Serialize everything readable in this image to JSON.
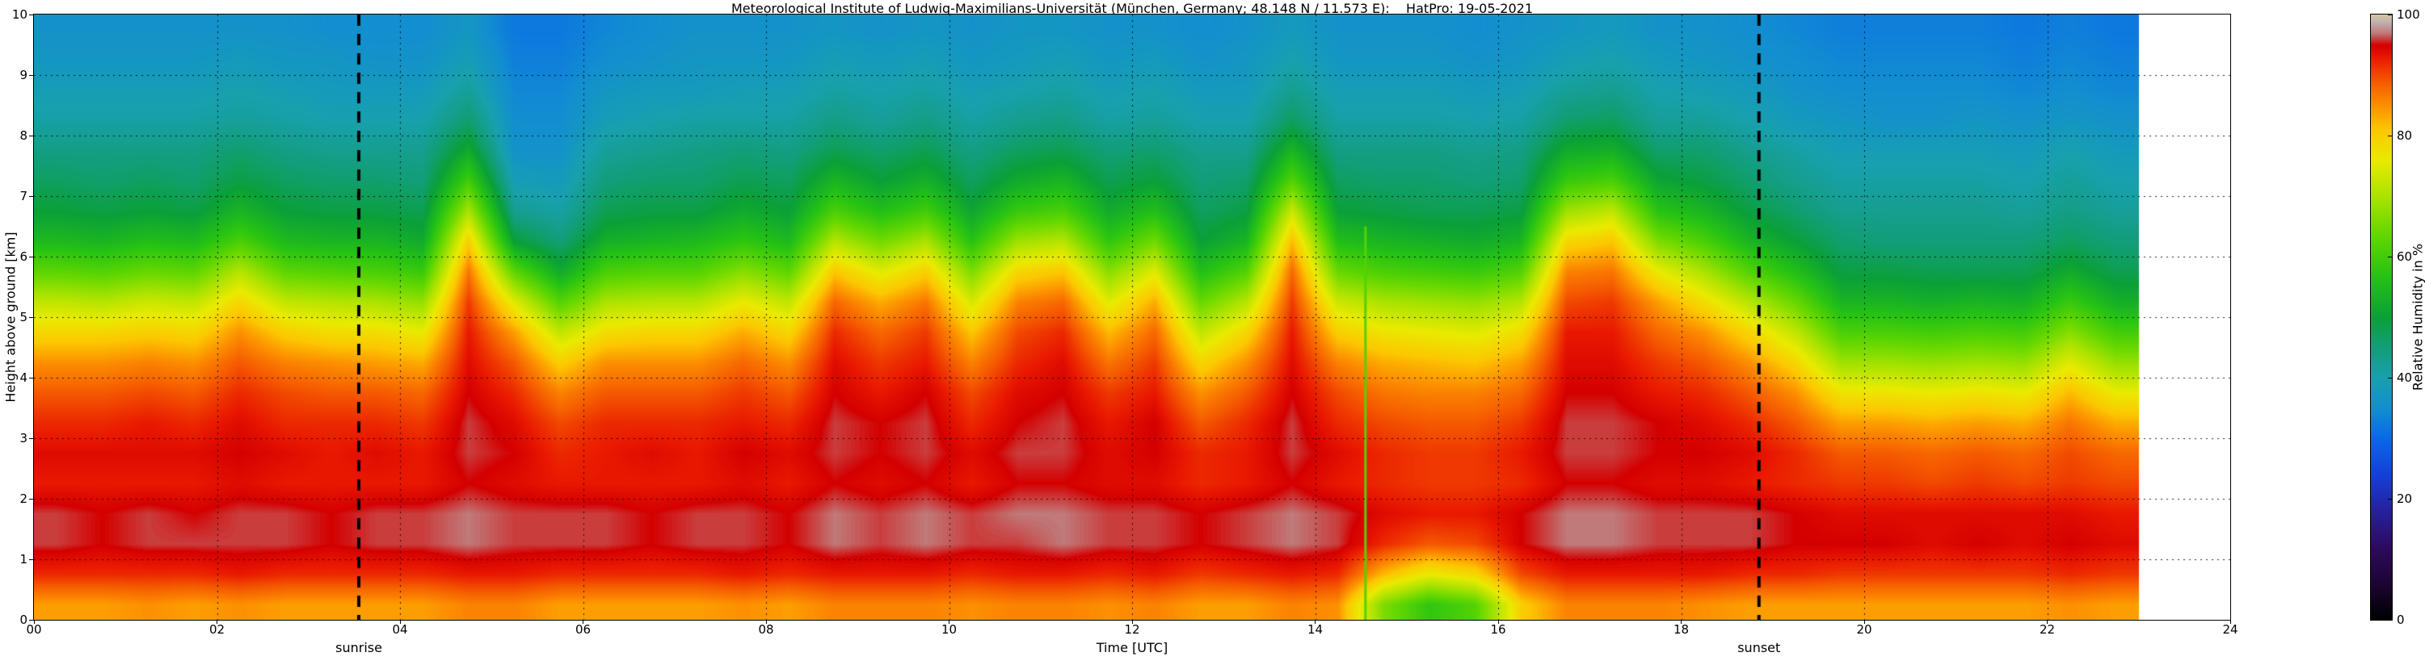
{
  "chart_data": {
    "type": "heatmap",
    "title": "Meteorological Institute of Ludwig-Maximilians-Universität (München, Germany; 48.148 N / 11.573 E):    HatPro: 19-05-2021",
    "xlabel": "Time [UTC]",
    "ylabel": "Height above ground [km]",
    "colorbar_label": "Relative Humidity in %",
    "xlim": [
      0,
      24
    ],
    "ylim": [
      0,
      10
    ],
    "data_end_hour": 23,
    "grid": true,
    "x_ticks": [
      "00",
      "02",
      "04",
      "06",
      "08",
      "10",
      "12",
      "14",
      "16",
      "18",
      "20",
      "22",
      "24"
    ],
    "x_tick_values": [
      0,
      2,
      4,
      6,
      8,
      10,
      12,
      14,
      16,
      18,
      20,
      22,
      24
    ],
    "y_ticks": [
      "0",
      "1",
      "2",
      "3",
      "4",
      "5",
      "6",
      "7",
      "8",
      "9",
      "10"
    ],
    "y_tick_values": [
      0,
      1,
      2,
      3,
      4,
      5,
      6,
      7,
      8,
      9,
      10
    ],
    "colorbar_ticks": [
      "0",
      "20",
      "40",
      "60",
      "80",
      "100"
    ],
    "colorbar_tick_values": [
      0,
      20,
      40,
      60,
      80,
      100
    ],
    "sunrise": {
      "label": "sunrise",
      "hour": 3.55
    },
    "sunset": {
      "label": "sunset",
      "hour": 18.85
    },
    "green_streak": {
      "hour": 14.55,
      "top_km": 6.5,
      "value": 62
    },
    "colormap_stops": [
      [
        0,
        "#000000"
      ],
      [
        6,
        "#1c0533"
      ],
      [
        12,
        "#2d0a5e"
      ],
      [
        18,
        "#26209e"
      ],
      [
        24,
        "#1440d8"
      ],
      [
        30,
        "#0a68e8"
      ],
      [
        35,
        "#128fd0"
      ],
      [
        40,
        "#18a0ae"
      ],
      [
        45,
        "#129e7a"
      ],
      [
        50,
        "#0aa038"
      ],
      [
        57,
        "#27c313"
      ],
      [
        64,
        "#66d800"
      ],
      [
        70,
        "#abe300"
      ],
      [
        76,
        "#eaea00"
      ],
      [
        81,
        "#fcc800"
      ],
      [
        85,
        "#fc9000"
      ],
      [
        89,
        "#f55a00"
      ],
      [
        93,
        "#e81800"
      ],
      [
        95,
        "#d40000"
      ],
      [
        97,
        "#c07a7a"
      ],
      [
        99,
        "#c2b6b6"
      ],
      [
        100,
        "#d8c498"
      ]
    ],
    "x_hours": [
      0,
      0.5,
      1,
      1.5,
      2,
      2.5,
      3,
      3.5,
      4,
      4.5,
      5,
      5.5,
      6,
      6.5,
      7,
      7.5,
      8,
      8.5,
      9,
      9.5,
      10,
      10.5,
      11,
      11.5,
      12,
      12.5,
      13,
      13.5,
      14,
      14.5,
      15,
      15.5,
      16,
      16.5,
      17,
      17.5,
      18,
      18.5,
      19,
      19.5,
      20,
      20.5,
      21,
      21.5,
      22,
      22.5
    ],
    "y_km": [
      0.25,
      0.75,
      1.25,
      1.75,
      2.25,
      2.75,
      3.25,
      3.75,
      4.25,
      4.75,
      5.25,
      5.75,
      6.25,
      6.75,
      7.25,
      7.75,
      8.25,
      8.75,
      9.25,
      9.75
    ],
    "values": [
      [
        84,
        92,
        96,
        96,
        93,
        94,
        92,
        89,
        85,
        79,
        72,
        63,
        55,
        50,
        47,
        44,
        41,
        39,
        37,
        36
      ],
      [
        84,
        92,
        95,
        95,
        93,
        94,
        92,
        89,
        85,
        79,
        71,
        62,
        54,
        49,
        46,
        44,
        41,
        39,
        37,
        36
      ],
      [
        85,
        92,
        96,
        96,
        93,
        94,
        93,
        90,
        86,
        80,
        73,
        64,
        56,
        50,
        47,
        44,
        41,
        39,
        37,
        36
      ],
      [
        84,
        92,
        96,
        95,
        93,
        94,
        92,
        89,
        85,
        79,
        72,
        63,
        55,
        49,
        46,
        44,
        41,
        39,
        37,
        36
      ],
      [
        85,
        93,
        96,
        96,
        94,
        95,
        94,
        92,
        89,
        85,
        79,
        71,
        61,
        54,
        49,
        46,
        42,
        40,
        38,
        36
      ],
      [
        84,
        92,
        96,
        96,
        93,
        94,
        92,
        90,
        86,
        80,
        72,
        63,
        55,
        50,
        47,
        44,
        41,
        39,
        37,
        36
      ],
      [
        84,
        92,
        95,
        95,
        93,
        93,
        92,
        89,
        85,
        78,
        71,
        62,
        54,
        49,
        46,
        43,
        40,
        38,
        37,
        35
      ],
      [
        84,
        92,
        96,
        96,
        93,
        94,
        92,
        89,
        84,
        78,
        70,
        61,
        54,
        49,
        46,
        43,
        40,
        38,
        36,
        35
      ],
      [
        84,
        92,
        96,
        96,
        93,
        93,
        91,
        88,
        83,
        76,
        68,
        59,
        52,
        48,
        45,
        43,
        40,
        38,
        36,
        35
      ],
      [
        86,
        93,
        97,
        97,
        95,
        96,
        96,
        95,
        94,
        93,
        91,
        87,
        80,
        70,
        60,
        52,
        46,
        42,
        39,
        37
      ],
      [
        86,
        93,
        96,
        96,
        94,
        95,
        94,
        92,
        89,
        84,
        75,
        63,
        50,
        43,
        39,
        36,
        35,
        34,
        33,
        32
      ],
      [
        84,
        92,
        96,
        96,
        93,
        92,
        90,
        86,
        80,
        72,
        62,
        52,
        45,
        41,
        38,
        36,
        35,
        34,
        33,
        32
      ],
      [
        84,
        92,
        96,
        96,
        93,
        93,
        92,
        89,
        85,
        78,
        70,
        61,
        53,
        48,
        45,
        42,
        39,
        37,
        35,
        34
      ],
      [
        84,
        92,
        95,
        95,
        93,
        94,
        92,
        89,
        85,
        79,
        71,
        62,
        54,
        49,
        46,
        43,
        40,
        38,
        36,
        35
      ],
      [
        84,
        92,
        96,
        96,
        93,
        93,
        92,
        89,
        85,
        79,
        71,
        62,
        55,
        49,
        46,
        44,
        41,
        38,
        37,
        36
      ],
      [
        85,
        93,
        96,
        96,
        94,
        95,
        93,
        91,
        88,
        83,
        76,
        67,
        58,
        52,
        48,
        45,
        41,
        39,
        37,
        36
      ],
      [
        84,
        92,
        95,
        95,
        93,
        94,
        92,
        89,
        85,
        79,
        72,
        63,
        55,
        50,
        47,
        44,
        41,
        39,
        37,
        36
      ],
      [
        86,
        93,
        97,
        97,
        95,
        96,
        96,
        95,
        94,
        92,
        88,
        81,
        71,
        61,
        54,
        48,
        44,
        41,
        39,
        37
      ],
      [
        86,
        93,
        96,
        96,
        94,
        95,
        95,
        93,
        91,
        88,
        83,
        75,
        65,
        56,
        50,
        46,
        42,
        40,
        38,
        36
      ],
      [
        86,
        93,
        97,
        97,
        95,
        96,
        96,
        95,
        93,
        91,
        87,
        80,
        70,
        60,
        53,
        48,
        44,
        41,
        39,
        37
      ],
      [
        85,
        92,
        96,
        96,
        93,
        94,
        92,
        90,
        86,
        81,
        74,
        66,
        57,
        51,
        47,
        44,
        41,
        39,
        37,
        36
      ],
      [
        86,
        93,
        96,
        97,
        95,
        96,
        95,
        94,
        92,
        90,
        86,
        79,
        69,
        59,
        52,
        47,
        43,
        40,
        38,
        37
      ],
      [
        86,
        93,
        97,
        97,
        95,
        96,
        96,
        95,
        94,
        92,
        88,
        81,
        71,
        61,
        54,
        48,
        44,
        41,
        39,
        37
      ],
      [
        85,
        92,
        96,
        96,
        94,
        94,
        93,
        91,
        87,
        82,
        75,
        67,
        58,
        52,
        48,
        45,
        41,
        39,
        37,
        36
      ],
      [
        86,
        93,
        96,
        96,
        94,
        95,
        95,
        93,
        91,
        88,
        83,
        75,
        65,
        56,
        50,
        46,
        42,
        40,
        38,
        36
      ],
      [
        84,
        91,
        95,
        95,
        92,
        92,
        89,
        85,
        79,
        72,
        64,
        56,
        50,
        47,
        45,
        43,
        40,
        38,
        36,
        35
      ],
      [
        84,
        92,
        96,
        96,
        93,
        93,
        92,
        89,
        85,
        79,
        71,
        62,
        54,
        49,
        46,
        43,
        40,
        38,
        37,
        36
      ],
      [
        86,
        93,
        97,
        97,
        95,
        96,
        96,
        95,
        94,
        93,
        91,
        88,
        82,
        73,
        62,
        54,
        47,
        43,
        40,
        38
      ],
      [
        85,
        92,
        96,
        96,
        93,
        94,
        92,
        90,
        86,
        80,
        73,
        64,
        56,
        50,
        47,
        44,
        41,
        39,
        37,
        36
      ],
      [
        66,
        82,
        92,
        94,
        92,
        92,
        90,
        87,
        83,
        77,
        70,
        61,
        54,
        49,
        46,
        44,
        41,
        39,
        37,
        36
      ],
      [
        58,
        76,
        89,
        93,
        91,
        91,
        89,
        86,
        82,
        76,
        69,
        60,
        53,
        48,
        46,
        44,
        41,
        39,
        37,
        36
      ],
      [
        62,
        79,
        90,
        93,
        91,
        91,
        89,
        86,
        81,
        75,
        68,
        59,
        52,
        48,
        45,
        43,
        40,
        38,
        36,
        35
      ],
      [
        80,
        90,
        95,
        95,
        92,
        93,
        91,
        88,
        84,
        78,
        71,
        62,
        54,
        49,
        46,
        44,
        41,
        39,
        37,
        36
      ],
      [
        86,
        93,
        97,
        97,
        95,
        96,
        96,
        95,
        94,
        93,
        90,
        86,
        79,
        69,
        59,
        52,
        46,
        42,
        39,
        37
      ],
      [
        86,
        93,
        97,
        97,
        95,
        96,
        96,
        95,
        94,
        93,
        91,
        87,
        81,
        72,
        61,
        53,
        47,
        43,
        40,
        38
      ],
      [
        86,
        93,
        96,
        96,
        94,
        95,
        95,
        93,
        91,
        88,
        84,
        76,
        66,
        57,
        51,
        46,
        42,
        40,
        38,
        36
      ],
      [
        85,
        93,
        96,
        96,
        94,
        95,
        94,
        92,
        89,
        85,
        78,
        70,
        61,
        54,
        49,
        46,
        42,
        39,
        37,
        36
      ],
      [
        84,
        92,
        96,
        96,
        93,
        94,
        92,
        89,
        85,
        79,
        71,
        62,
        54,
        49,
        46,
        43,
        40,
        38,
        36,
        35
      ],
      [
        84,
        92,
        95,
        95,
        92,
        92,
        89,
        85,
        79,
        72,
        64,
        56,
        50,
        46,
        43,
        41,
        38,
        36,
        35,
        34
      ],
      [
        84,
        91,
        95,
        94,
        91,
        89,
        84,
        77,
        69,
        61,
        54,
        49,
        46,
        43,
        41,
        39,
        37,
        35,
        34,
        33
      ],
      [
        84,
        91,
        95,
        94,
        91,
        89,
        84,
        77,
        69,
        61,
        54,
        49,
        45,
        43,
        41,
        39,
        36,
        35,
        34,
        33
      ],
      [
        84,
        91,
        94,
        94,
        90,
        88,
        83,
        76,
        68,
        60,
        53,
        48,
        45,
        43,
        41,
        39,
        36,
        35,
        34,
        33
      ],
      [
        84,
        91,
        95,
        94,
        91,
        89,
        84,
        77,
        69,
        61,
        54,
        48,
        45,
        43,
        41,
        39,
        37,
        35,
        34,
        33
      ],
      [
        84,
        91,
        94,
        94,
        90,
        88,
        83,
        76,
        68,
        60,
        53,
        48,
        45,
        42,
        40,
        38,
        36,
        34,
        33,
        32
      ],
      [
        85,
        92,
        95,
        94,
        91,
        90,
        87,
        82,
        75,
        67,
        59,
        52,
        47,
        44,
        42,
        40,
        37,
        35,
        34,
        33
      ],
      [
        84,
        91,
        94,
        93,
        90,
        88,
        83,
        76,
        68,
        60,
        53,
        48,
        45,
        42,
        40,
        38,
        36,
        34,
        33,
        32
      ]
    ]
  }
}
